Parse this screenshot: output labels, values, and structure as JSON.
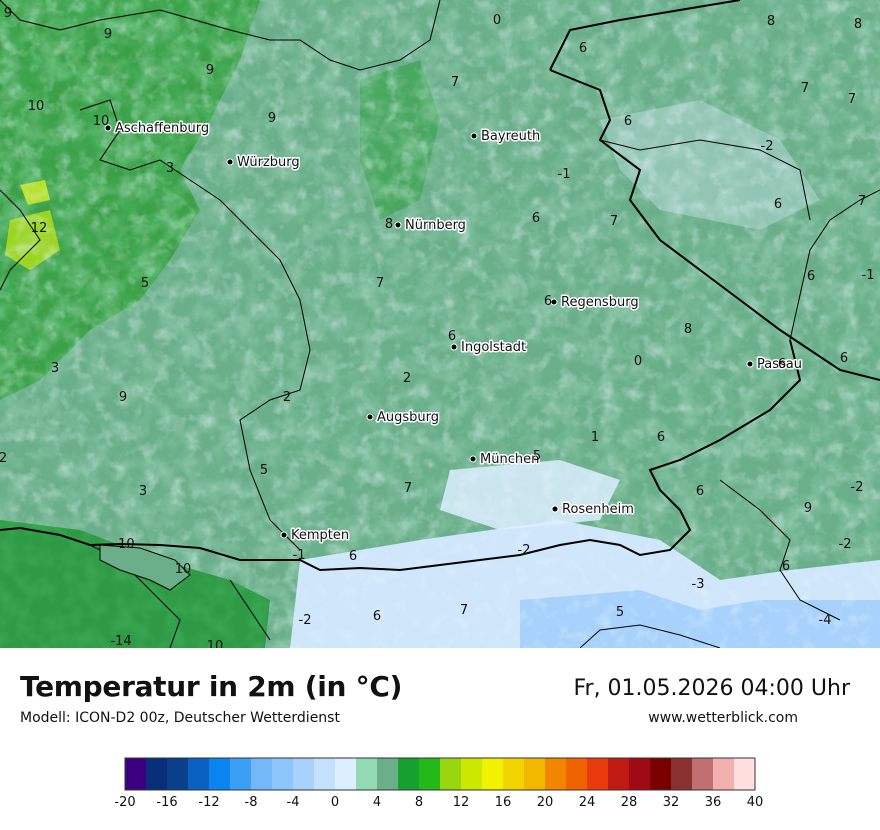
{
  "title": "Temperatur in 2m (in °C)",
  "subtitle": "Modell: ICON-D2 00z, Deutscher Wetterdienst",
  "datetime": "Fr, 01.05.2026 04:00 Uhr",
  "website": "www.wetterblick.com",
  "cities": [
    {
      "name": "Aschaffenburg"
    },
    {
      "name": "Würzburg"
    },
    {
      "name": "Bayreuth"
    },
    {
      "name": "Nürnberg"
    },
    {
      "name": "Regensburg"
    },
    {
      "name": "Ingolstadt"
    },
    {
      "name": "Passau"
    },
    {
      "name": "Augsburg"
    },
    {
      "name": "München"
    },
    {
      "name": "Rosenheim"
    },
    {
      "name": "Kempten"
    }
  ],
  "temperature_labels": [
    "9",
    "0",
    "8",
    "8",
    "9",
    "10",
    "7",
    "6",
    "7",
    "7",
    "10",
    "9",
    "3",
    "9",
    "-2",
    "6",
    "-1",
    "7",
    "12",
    "8",
    "7",
    "6",
    "6",
    "5",
    "7",
    "6",
    "-1",
    "3",
    "6",
    "8",
    "0",
    "6",
    "9",
    "2",
    "2",
    "6",
    "6",
    "2",
    "5",
    "5",
    "1",
    "6",
    "3",
    "7",
    "6",
    "-2",
    "9",
    "-10",
    "-1",
    "6",
    "-2",
    "-2",
    "10",
    "-3",
    "6",
    "-2",
    "7",
    "5",
    "-4",
    "-14",
    "10",
    "6"
  ],
  "legend": {
    "ticks": [
      "-20",
      "-16",
      "-12",
      "-8",
      "-4",
      "0",
      "4",
      "8",
      "12",
      "16",
      "20",
      "24",
      "28",
      "32",
      "36",
      "40"
    ],
    "colors": [
      "#3a0080",
      "#0a2f7a",
      "#0a3f8a",
      "#0a60c0",
      "#0a85f0",
      "#3a9ff5",
      "#74b8fa",
      "#8cc6fb",
      "#a8d2fc",
      "#c3e1fd",
      "#dcefff",
      "#92dbb2",
      "#6aaf8a",
      "#16a030",
      "#24b818",
      "#98d610",
      "#cde800",
      "#f1f200",
      "#f2d400",
      "#f2b800",
      "#f28600",
      "#f06400",
      "#e83a0a",
      "#c01a14",
      "#a00a14",
      "#7a0000",
      "#8a3030",
      "#c07070",
      "#f0b0b0",
      "#ffdede"
    ]
  }
}
